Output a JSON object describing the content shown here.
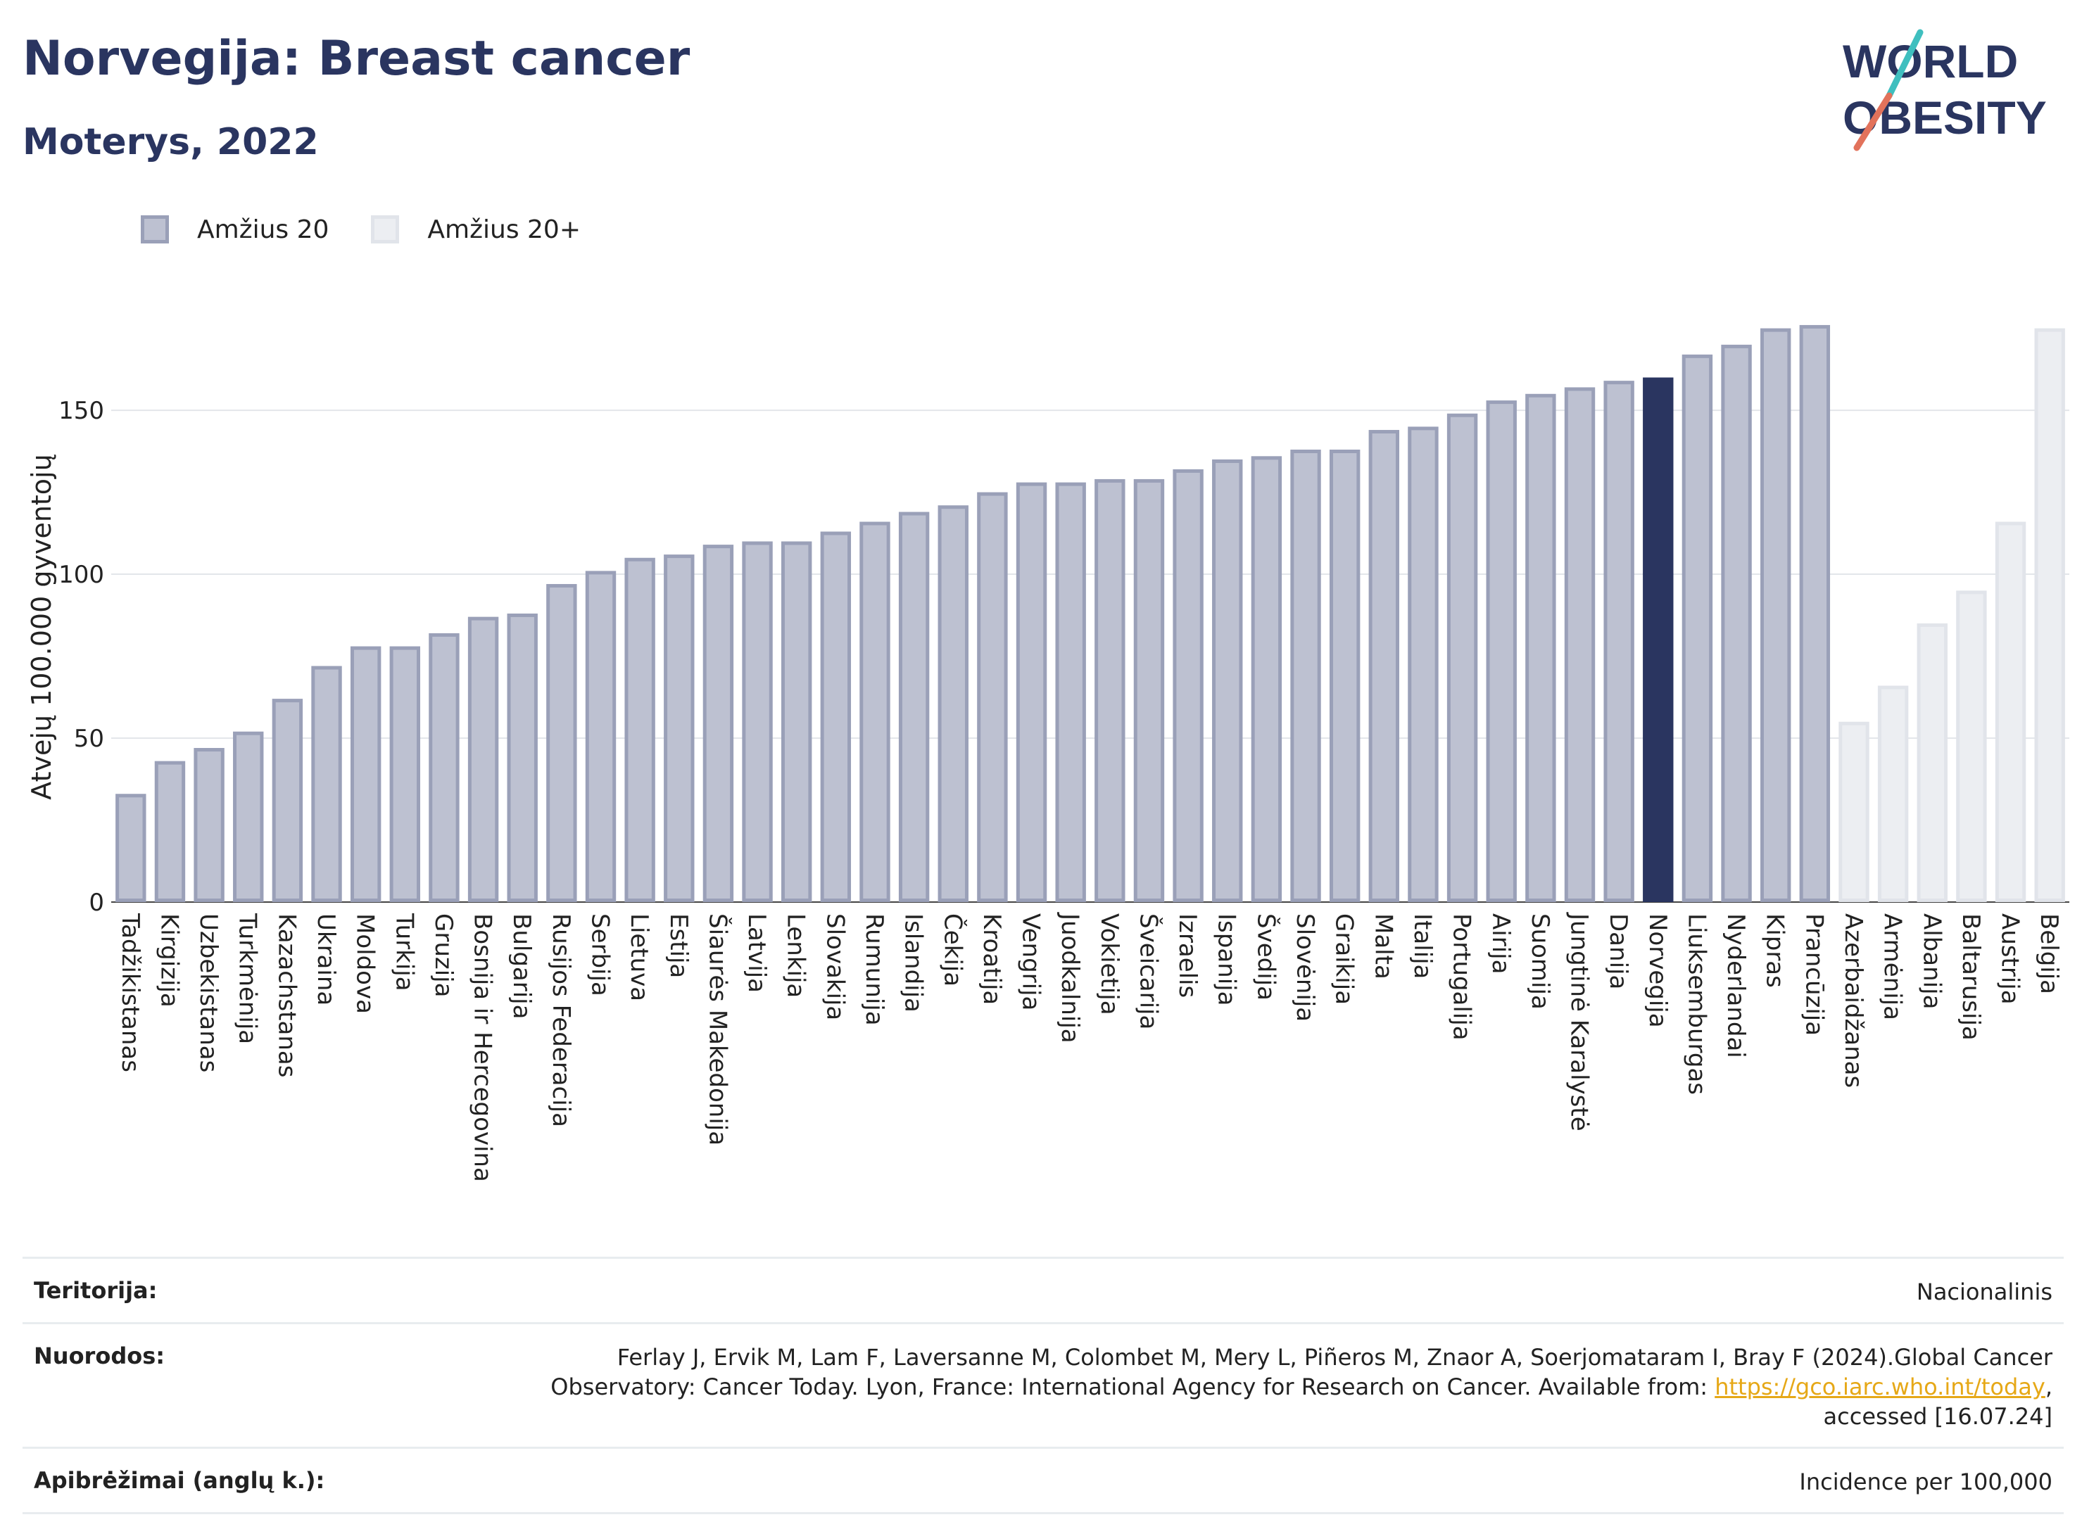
{
  "header": {
    "title": "Norvegija: Breast cancer",
    "subtitle": "Moterys, 2022"
  },
  "logo": {
    "line1": "WORLD",
    "line2": "OBESITY",
    "colors": {
      "text": "#2a3560",
      "slash_top": "#3fbfbf",
      "slash_bottom": "#e2725b"
    }
  },
  "legend": [
    {
      "label": "Amžius 20",
      "fill": "#bdc1d1",
      "stroke": "#9aa0b8"
    },
    {
      "label": "Amžius 20+",
      "fill": "#eceef2",
      "stroke": "#e1e4ea"
    }
  ],
  "chart_data": {
    "type": "bar",
    "ylabel": "Atvejų 100.000 gyventojų",
    "ylim": [
      0,
      185
    ],
    "yticks": [
      0,
      50,
      100,
      150
    ],
    "grid": true,
    "legend_position": "top-left",
    "highlight": "Norvegija",
    "colors": {
      "group1": "#bdc1d1",
      "group1_stroke": "#9aa0b8",
      "group2": "#eceef2",
      "group2_stroke": "#e1e4ea",
      "highlight": "#2a3560"
    },
    "series": [
      {
        "name": "Amžius 20",
        "categories": [
          "Tadžikistanas",
          "Kirgizija",
          "Uzbekistanas",
          "Turkmėnija",
          "Kazachstanas",
          "Ukraina",
          "Moldova",
          "Turkija",
          "Gruzija",
          "Bosnija ir Hercegovina",
          "Bulgarija",
          "Rusijos Federacija",
          "Serbija",
          "Lietuva",
          "Estija",
          "Šiaurės Makedonija",
          "Latvija",
          "Lenkija",
          "Slovakija",
          "Rumunija",
          "Islandija",
          "Čekija",
          "Kroatija",
          "Vengrija",
          "Juodkalnija",
          "Vokietija",
          "Šveicarija",
          "Izraelis",
          "Ispanija",
          "Švedija",
          "Slovėnija",
          "Graikija",
          "Malta",
          "Italija",
          "Portugalija",
          "Airija",
          "Suomija",
          "Jungtinė Karalystė",
          "Danija",
          "Norvegija",
          "Liuksemburgas",
          "Nyderlandai",
          "Kipras",
          "Prancūzija"
        ],
        "values": [
          33,
          43,
          47,
          52,
          62,
          72,
          78,
          78,
          82,
          87,
          88,
          97,
          101,
          105,
          106,
          109,
          110,
          110,
          113,
          116,
          119,
          121,
          125,
          128,
          128,
          129,
          129,
          132,
          135,
          136,
          138,
          138,
          144,
          145,
          149,
          153,
          155,
          157,
          159,
          160,
          167,
          170,
          175,
          176
        ]
      },
      {
        "name": "Amžius 20+",
        "categories": [
          "Azerbaidžanas",
          "Armėnija",
          "Albanija",
          "Baltarusija",
          "Austrija",
          "Belgija"
        ],
        "values": [
          55,
          66,
          85,
          95,
          116,
          175
        ]
      }
    ]
  },
  "info": [
    {
      "label": "Teritorija:",
      "value": "Nacionalinis"
    },
    {
      "label": "Nuorodos:",
      "value_line1": "Ferlay J, Ervik M, Lam F, Laversanne M, Colombet M, Mery L, Piñeros M, Znaor A, Soerjomataram I, Bray F (2024).Global Cancer",
      "value_line2_pre": "Observatory: Cancer Today. Lyon, France: International Agency for Research on Cancer. Available from: ",
      "link": "https://gco.iarc.who.int/today",
      "value_line2_post": ",",
      "value_line3": "accessed [16.07.24]"
    },
    {
      "label": "Apibrėžimai (anglų k.):",
      "value": "Incidence per 100,000"
    }
  ]
}
